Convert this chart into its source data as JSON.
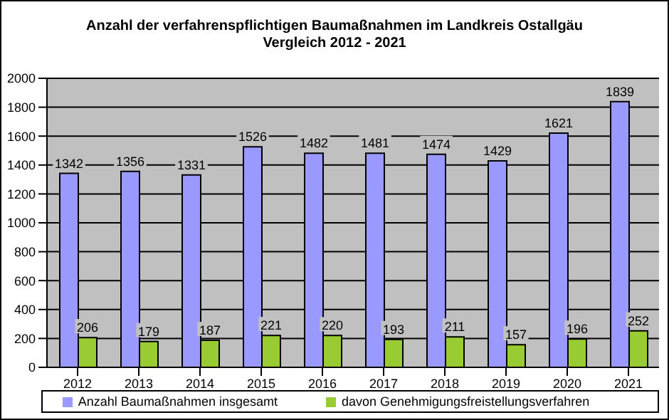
{
  "chart_data": {
    "type": "bar",
    "title": "Anzahl der verfahrenspflichtigen Baumaßnahmen im Landkreis Ostallgäu",
    "subtitle": "Vergleich 2012 - 2021",
    "categories": [
      "2012",
      "2013",
      "2014",
      "2015",
      "2016",
      "2017",
      "2018",
      "2019",
      "2020",
      "2021"
    ],
    "series": [
      {
        "name": "Anzahl Baumaßnahmen insgesamt",
        "color": "#9999ff",
        "values": [
          1342,
          1356,
          1331,
          1526,
          1482,
          1481,
          1474,
          1429,
          1621,
          1839
        ]
      },
      {
        "name": "davon Genehmigungsfreistellungsverfahren",
        "color": "#99cc33",
        "values": [
          206,
          179,
          187,
          221,
          220,
          193,
          211,
          157,
          196,
          252
        ]
      }
    ],
    "ylim": [
      0,
      2000
    ],
    "yticks": [
      0,
      200,
      400,
      600,
      800,
      1000,
      1200,
      1400,
      1600,
      1800,
      2000
    ],
    "grid": "y",
    "legend": "bottom",
    "data_labels": true
  }
}
